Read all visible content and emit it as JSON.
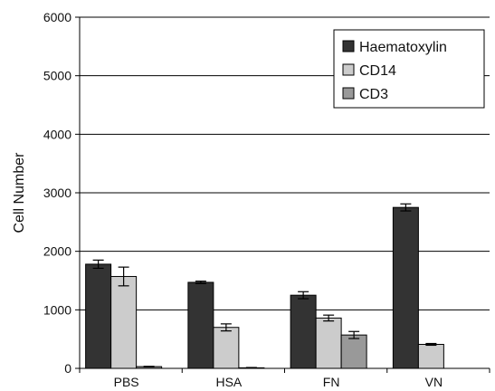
{
  "chart_data": {
    "type": "bar",
    "title": "",
    "xlabel": "",
    "ylabel": "Cell Number",
    "ylim": [
      0,
      6000
    ],
    "yticks": [
      0,
      1000,
      2000,
      3000,
      4000,
      5000,
      6000
    ],
    "grid": true,
    "legend_position": "top-right",
    "categories": [
      "PBS",
      "HSA",
      "FN",
      "VN"
    ],
    "series": [
      {
        "name": "Haematoxylin",
        "color": "#333333",
        "values": [
          1780,
          1470,
          1250,
          2750
        ],
        "errors": [
          70,
          20,
          60,
          60
        ]
      },
      {
        "name": "CD14",
        "color": "#cccccc",
        "values": [
          1570,
          700,
          860,
          410
        ],
        "errors": [
          160,
          60,
          50,
          15
        ]
      },
      {
        "name": "CD3",
        "color": "#999999",
        "values": [
          30,
          10,
          570,
          null
        ],
        "errors": [
          5,
          5,
          60,
          null
        ]
      }
    ]
  }
}
